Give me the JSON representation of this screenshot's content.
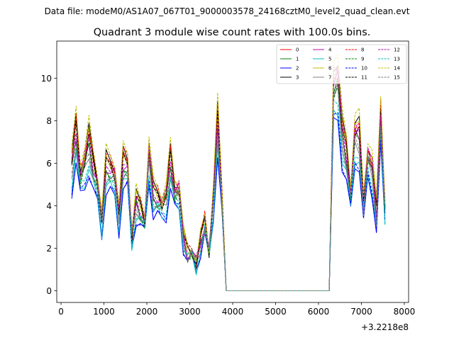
{
  "suptitle": "Data file: modeM0/AS1A07_067T01_9000003578_24168cztM0_level2_quad_clean.evt",
  "chart_data": {
    "type": "line",
    "title": "Quadrant 3 module wise count rates with 100.0s bins.",
    "xlabel": "",
    "ylabel": "",
    "offset_label": "+3.2218e8",
    "xlim": [
      -100,
      8100
    ],
    "ylim": [
      -0.55,
      11.75
    ],
    "xticks": [
      0,
      1000,
      2000,
      3000,
      4000,
      5000,
      6000,
      7000,
      8000
    ],
    "xtick_labels": [
      "0",
      "1000",
      "2000",
      "3000",
      "4000",
      "5000",
      "6000",
      "7000",
      "8000"
    ],
    "yticks": [
      0,
      2,
      4,
      6,
      8,
      10
    ],
    "ytick_labels": [
      "0",
      "2",
      "4",
      "6",
      "8",
      "10"
    ],
    "x_start": 250,
    "x_step": 100,
    "base_values": [
      6.0,
      7.7,
      5.6,
      6.2,
      7.2,
      6.0,
      5.2,
      3.4,
      6.0,
      5.9,
      5.6,
      3.6,
      6.2,
      6.1,
      2.6,
      4.3,
      3.9,
      3.4,
      6.6,
      4.6,
      4.5,
      4.2,
      4.5,
      6.3,
      4.8,
      4.9,
      2.6,
      1.8,
      1.9,
      1.3,
      2.3,
      3.3,
      1.9,
      4.5,
      8.2,
      4.5,
      0.0,
      0.0,
      0.0,
      0.0,
      0.0,
      0.0,
      0.0,
      0.0,
      0.0,
      0.0,
      0.0,
      0.0,
      0.0,
      0.0,
      0.0,
      0.0,
      0.0,
      0.0,
      0.0,
      0.0,
      0.0,
      0.0,
      0.0,
      0.0,
      0.0,
      10.0,
      10.3,
      7.6,
      6.6,
      4.7,
      7.6,
      7.5,
      4.1,
      6.6,
      5.9,
      3.7,
      8.5,
      4.0
    ],
    "series": [
      {
        "name": "0",
        "color": "#ff0000",
        "style": "solid",
        "scale": 1.0
      },
      {
        "name": "1",
        "color": "#008000",
        "style": "solid",
        "scale": 0.95
      },
      {
        "name": "2",
        "color": "#0000ff",
        "style": "solid",
        "scale": 0.78
      },
      {
        "name": "3",
        "color": "#000000",
        "style": "solid",
        "scale": 1.05
      },
      {
        "name": "4",
        "color": "#bf00bf",
        "style": "solid",
        "scale": 0.97
      },
      {
        "name": "5",
        "color": "#00bfbf",
        "style": "solid",
        "scale": 0.82
      },
      {
        "name": "6",
        "color": "#bfbf00",
        "style": "solid",
        "scale": 1.02
      },
      {
        "name": "7",
        "color": "#808080",
        "style": "solid",
        "scale": 0.9
      },
      {
        "name": "8",
        "color": "#ff0000",
        "style": "dashed",
        "scale": 1.04
      },
      {
        "name": "9",
        "color": "#008000",
        "style": "dashed",
        "scale": 0.93
      },
      {
        "name": "10",
        "color": "#0000ff",
        "style": "dashed",
        "scale": 0.8
      },
      {
        "name": "11",
        "color": "#000000",
        "style": "dashed",
        "scale": 0.99
      },
      {
        "name": "12",
        "color": "#bf00bf",
        "style": "dashed",
        "scale": 1.0
      },
      {
        "name": "13",
        "color": "#00bfbf",
        "style": "dashed",
        "scale": 0.86
      },
      {
        "name": "14",
        "color": "#bfbf00",
        "style": "dashed",
        "scale": 1.1
      },
      {
        "name": "15",
        "color": "#808080",
        "style": "dashed",
        "scale": 0.92
      }
    ],
    "legend_location": "top-right"
  }
}
